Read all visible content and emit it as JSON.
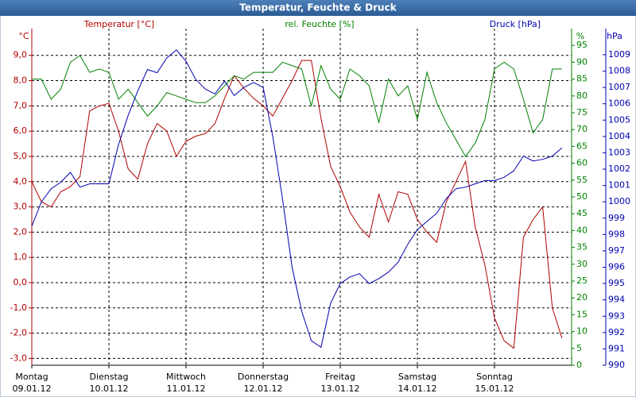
{
  "chart_data": {
    "type": "line",
    "title": "Temperatur, Feuchte & Druck",
    "axis_titles": {
      "y": "°C",
      "y2": "%",
      "y3": "hPa"
    },
    "xlim": [
      0,
      7
    ],
    "xticks": [
      0,
      1,
      2,
      3,
      4,
      5,
      6
    ],
    "xtick_labels": [
      {
        "day": "Montag",
        "date": "09.01.12"
      },
      {
        "day": "Dienstag",
        "date": "10.01.12"
      },
      {
        "day": "Mittwoch",
        "date": "11.01.12"
      },
      {
        "day": "Donnerstag",
        "date": "12.01.12"
      },
      {
        "day": "Freitag",
        "date": "13.01.12"
      },
      {
        "day": "Samstag",
        "date": "14.01.12"
      },
      {
        "day": "Sonntag",
        "date": "15.01.12"
      }
    ],
    "ylim": [
      -3.27,
      10.06
    ],
    "yticks": [
      {
        "value": -3,
        "label": "-3,0"
      },
      {
        "value": -2,
        "label": "-2,0"
      },
      {
        "value": -1,
        "label": "-1,0"
      },
      {
        "value": 0,
        "label": "0,0"
      },
      {
        "value": 1,
        "label": "1,0"
      },
      {
        "value": 2,
        "label": "2,0"
      },
      {
        "value": 3,
        "label": "3,0"
      },
      {
        "value": 4,
        "label": "4,0"
      },
      {
        "value": 5,
        "label": "5,0"
      },
      {
        "value": 6,
        "label": "6,0"
      },
      {
        "value": 7,
        "label": "7,0"
      },
      {
        "value": 8,
        "label": "8,0"
      },
      {
        "value": 9,
        "label": "9,0"
      }
    ],
    "y2lim": [
      0,
      100
    ],
    "y2ticks": [
      0,
      5,
      10,
      15,
      20,
      25,
      30,
      35,
      40,
      45,
      50,
      55,
      60,
      65,
      70,
      75,
      80,
      85,
      90,
      95
    ],
    "y3lim": [
      990,
      1010.6
    ],
    "y3ticks": [
      990,
      991,
      992,
      993,
      994,
      995,
      996,
      997,
      998,
      999,
      1000,
      1001,
      1002,
      1003,
      1004,
      1005,
      1006,
      1007,
      1008,
      1009
    ],
    "grid": true,
    "x": [
      0,
      0.125,
      0.25,
      0.375,
      0.5,
      0.625,
      0.75,
      0.875,
      1,
      1.125,
      1.25,
      1.375,
      1.5,
      1.625,
      1.75,
      1.875,
      2,
      2.125,
      2.25,
      2.375,
      2.5,
      2.625,
      2.75,
      2.875,
      3,
      3.125,
      3.25,
      3.375,
      3.5,
      3.625,
      3.75,
      3.875,
      4,
      4.125,
      4.25,
      4.375,
      4.5,
      4.625,
      4.75,
      4.875,
      5,
      5.125,
      5.25,
      5.375,
      5.5,
      5.625,
      5.75,
      5.875,
      6,
      6.125,
      6.25,
      6.375,
      6.5,
      6.625,
      6.75,
      6.875
    ],
    "series": [
      {
        "name": "Temperatur [°C]",
        "color": "#b00000",
        "axis": "y",
        "values": [
          4.0,
          3.2,
          3.0,
          3.6,
          3.8,
          4.2,
          6.8,
          7.0,
          7.1,
          6.0,
          4.5,
          4.1,
          5.5,
          6.3,
          6.0,
          5.0,
          5.6,
          5.8,
          5.9,
          6.3,
          7.3,
          8.2,
          7.7,
          7.3,
          7.0,
          6.6,
          7.3,
          8.0,
          8.8,
          8.8,
          6.5,
          4.6,
          3.8,
          2.8,
          2.2,
          1.8,
          3.5,
          2.4,
          3.6,
          3.5,
          2.5,
          2.0,
          1.6,
          3.2,
          4.0,
          4.8,
          2.2,
          0.7,
          -1.4,
          -2.3,
          -2.6,
          1.8,
          2.5,
          3.0,
          -1.0,
          -2.2
        ]
      },
      {
        "name": "rel. Feuchte [%]",
        "color": "#008000",
        "axis": "y2",
        "values": [
          85,
          85,
          79,
          82,
          90,
          92,
          87,
          88,
          87,
          79,
          82,
          78,
          74,
          77,
          81,
          80,
          79,
          78,
          78,
          80,
          83,
          86,
          85,
          87,
          87,
          87,
          90,
          89,
          88,
          77,
          89,
          82,
          79,
          88,
          86,
          83,
          72,
          85,
          80,
          83,
          73,
          87,
          78,
          72,
          67,
          62,
          66,
          73,
          88,
          90,
          88,
          79,
          69,
          73,
          88,
          88
        ]
      },
      {
        "name": "Druck [hPa]",
        "color": "#0000b0",
        "axis": "y3",
        "values": [
          998.5,
          1000.0,
          1000.8,
          1001.2,
          1001.8,
          1000.9,
          1001.1,
          1001.1,
          1001.1,
          1003.5,
          1005.3,
          1006.8,
          1008.1,
          1007.9,
          1008.8,
          1009.3,
          1008.6,
          1007.5,
          1006.9,
          1006.6,
          1007.4,
          1006.5,
          1007.0,
          1007.3,
          1007.0,
          1004.0,
          1000.2,
          996.0,
          993.3,
          991.5,
          991.1,
          993.8,
          995.0,
          995.4,
          995.6,
          995.0,
          995.3,
          995.7,
          996.3,
          997.4,
          998.3,
          998.8,
          999.3,
          1000.2,
          1000.8,
          1000.9,
          1001.1,
          1001.3,
          1001.3,
          1001.5,
          1001.9,
          1002.8,
          1002.5,
          1002.6,
          1002.8,
          1003.3
        ]
      }
    ]
  }
}
